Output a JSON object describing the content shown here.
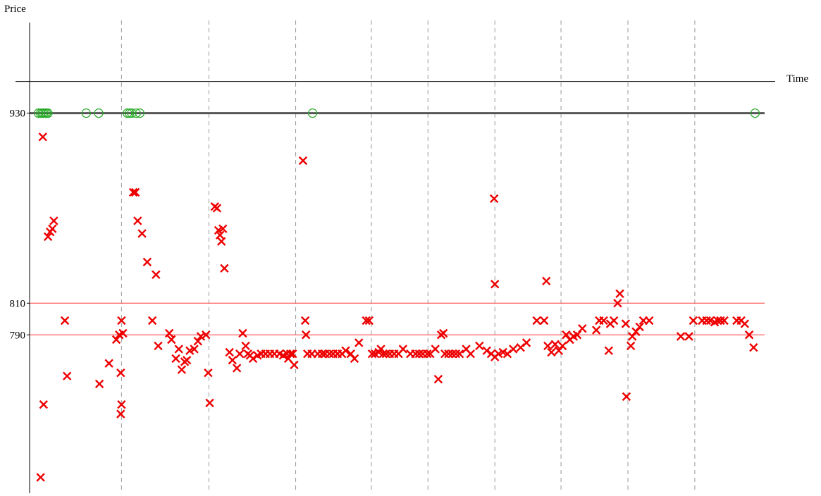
{
  "chart_data": {
    "type": "scatter",
    "title": "",
    "xlabel": "Time",
    "ylabel": "Price",
    "xlim": [
      0,
      1
    ],
    "ylim": [
      690,
      985
    ],
    "yticks": [
      {
        "value": 930,
        "label": "930"
      },
      {
        "value": 810,
        "label": "810"
      },
      {
        "value": 790,
        "label": "790"
      }
    ],
    "x_axis_at_y": 950,
    "grid": {
      "vertical": true,
      "horizontal": false,
      "x_positions": [
        0.125,
        0.244,
        0.362,
        0.465,
        0.542,
        0.633,
        0.723,
        0.814,
        0.905
      ]
    },
    "reference_lines": [
      {
        "y": 930,
        "color": "#555555"
      },
      {
        "y": 810,
        "color": "#ff3333"
      },
      {
        "y": 790,
        "color": "#ff3333"
      }
    ],
    "colors": {
      "crosses": "#ee0000",
      "circles": "#22aa22"
    },
    "series": [
      {
        "marker": "circle",
        "color": "#22aa22",
        "points": [
          [
            0.012,
            930
          ],
          [
            0.015,
            930
          ],
          [
            0.017,
            930
          ],
          [
            0.019,
            930
          ],
          [
            0.021,
            930
          ],
          [
            0.023,
            930
          ],
          [
            0.025,
            930
          ],
          [
            0.077,
            930
          ],
          [
            0.094,
            930
          ],
          [
            0.133,
            930
          ],
          [
            0.136,
            930
          ],
          [
            0.139,
            930
          ],
          [
            0.145,
            930
          ],
          [
            0.15,
            930
          ],
          [
            0.385,
            930
          ],
          [
            0.987,
            930
          ]
        ]
      },
      {
        "marker": "x",
        "color": "#ee0000",
        "points": [
          [
            0.018,
            915
          ],
          [
            0.025,
            852
          ],
          [
            0.028,
            855
          ],
          [
            0.031,
            857
          ],
          [
            0.033,
            862
          ],
          [
            0.048,
            799
          ],
          [
            0.051,
            764
          ],
          [
            0.019,
            746
          ],
          [
            0.015,
            700
          ],
          [
            0.095,
            759
          ],
          [
            0.108,
            772
          ],
          [
            0.118,
            787
          ],
          [
            0.122,
            790
          ],
          [
            0.125,
            799
          ],
          [
            0.124,
            766
          ],
          [
            0.124,
            740
          ],
          [
            0.125,
            746
          ],
          [
            0.127,
            791
          ],
          [
            0.141,
            880
          ],
          [
            0.144,
            880
          ],
          [
            0.147,
            862
          ],
          [
            0.153,
            854
          ],
          [
            0.16,
            836
          ],
          [
            0.167,
            799
          ],
          [
            0.172,
            828
          ],
          [
            0.175,
            783
          ],
          [
            0.19,
            791
          ],
          [
            0.193,
            787
          ],
          [
            0.199,
            775
          ],
          [
            0.203,
            781
          ],
          [
            0.207,
            768
          ],
          [
            0.211,
            773
          ],
          [
            0.214,
            774
          ],
          [
            0.218,
            780
          ],
          [
            0.224,
            781
          ],
          [
            0.229,
            786
          ],
          [
            0.233,
            789
          ],
          [
            0.24,
            790
          ],
          [
            0.243,
            766
          ],
          [
            0.245,
            747
          ],
          [
            0.252,
            871
          ],
          [
            0.255,
            870
          ],
          [
            0.257,
            856
          ],
          [
            0.259,
            853
          ],
          [
            0.261,
            849
          ],
          [
            0.263,
            857
          ],
          [
            0.265,
            832
          ],
          [
            0.272,
            779
          ],
          [
            0.276,
            774
          ],
          [
            0.282,
            769
          ],
          [
            0.286,
            778
          ],
          [
            0.29,
            791
          ],
          [
            0.294,
            783
          ],
          [
            0.297,
            778
          ],
          [
            0.3,
            777
          ],
          [
            0.304,
            775
          ],
          [
            0.31,
            777
          ],
          [
            0.315,
            778
          ],
          [
            0.321,
            778
          ],
          [
            0.327,
            778
          ],
          [
            0.333,
            778
          ],
          [
            0.34,
            778
          ],
          [
            0.345,
            777
          ],
          [
            0.35,
            778
          ],
          [
            0.352,
            775
          ],
          [
            0.355,
            778
          ],
          [
            0.358,
            778
          ],
          [
            0.36,
            771
          ],
          [
            0.372,
            900
          ],
          [
            0.375,
            799
          ],
          [
            0.376,
            790
          ],
          [
            0.378,
            778
          ],
          [
            0.384,
            778
          ],
          [
            0.392,
            778
          ],
          [
            0.398,
            778
          ],
          [
            0.402,
            778
          ],
          [
            0.408,
            778
          ],
          [
            0.413,
            778
          ],
          [
            0.419,
            778
          ],
          [
            0.425,
            778
          ],
          [
            0.43,
            780
          ],
          [
            0.437,
            778
          ],
          [
            0.442,
            775
          ],
          [
            0.448,
            785
          ],
          [
            0.458,
            799
          ],
          [
            0.462,
            799
          ],
          [
            0.466,
            778
          ],
          [
            0.47,
            778
          ],
          [
            0.475,
            779
          ],
          [
            0.478,
            781
          ],
          [
            0.481,
            778
          ],
          [
            0.485,
            778
          ],
          [
            0.49,
            778
          ],
          [
            0.496,
            778
          ],
          [
            0.502,
            778
          ],
          [
            0.508,
            781
          ],
          [
            0.518,
            778
          ],
          [
            0.525,
            778
          ],
          [
            0.53,
            778
          ],
          [
            0.535,
            778
          ],
          [
            0.541,
            778
          ],
          [
            0.545,
            778
          ],
          [
            0.552,
            781
          ],
          [
            0.556,
            762
          ],
          [
            0.56,
            790
          ],
          [
            0.563,
            791
          ],
          [
            0.565,
            778
          ],
          [
            0.57,
            778
          ],
          [
            0.575,
            778
          ],
          [
            0.58,
            778
          ],
          [
            0.585,
            778
          ],
          [
            0.594,
            781
          ],
          [
            0.6,
            778
          ],
          [
            0.612,
            783
          ],
          [
            0.622,
            780
          ],
          [
            0.628,
            778
          ],
          [
            0.633,
            776
          ],
          [
            0.638,
            778
          ],
          [
            0.644,
            779
          ],
          [
            0.65,
            778
          ],
          [
            0.658,
            781
          ],
          [
            0.668,
            782
          ],
          [
            0.676,
            785
          ],
          [
            0.632,
            876
          ],
          [
            0.633,
            822
          ],
          [
            0.69,
            799
          ],
          [
            0.7,
            799
          ],
          [
            0.703,
            824
          ],
          [
            0.705,
            783
          ],
          [
            0.71,
            779
          ],
          [
            0.715,
            784
          ],
          [
            0.72,
            780
          ],
          [
            0.725,
            783
          ],
          [
            0.73,
            790
          ],
          [
            0.735,
            787
          ],
          [
            0.74,
            789
          ],
          [
            0.745,
            790
          ],
          [
            0.752,
            794
          ],
          [
            0.771,
            793
          ],
          [
            0.775,
            799
          ],
          [
            0.781,
            799
          ],
          [
            0.79,
            797
          ],
          [
            0.795,
            799
          ],
          [
            0.8,
            810
          ],
          [
            0.803,
            816
          ],
          [
            0.811,
            797
          ],
          [
            0.818,
            783
          ],
          [
            0.82,
            789
          ],
          [
            0.825,
            792
          ],
          [
            0.83,
            795
          ],
          [
            0.835,
            799
          ],
          [
            0.843,
            799
          ],
          [
            0.886,
            789
          ],
          [
            0.897,
            789
          ],
          [
            0.903,
            799
          ],
          [
            0.915,
            799
          ],
          [
            0.921,
            799
          ],
          [
            0.926,
            799
          ],
          [
            0.932,
            798
          ],
          [
            0.936,
            799
          ],
          [
            0.94,
            799
          ],
          [
            0.945,
            799
          ],
          [
            0.962,
            799
          ],
          [
            0.968,
            799
          ],
          [
            0.973,
            797
          ],
          [
            0.979,
            790
          ],
          [
            0.985,
            782
          ],
          [
            0.788,
            780
          ],
          [
            0.812,
            751
          ]
        ]
      }
    ]
  }
}
